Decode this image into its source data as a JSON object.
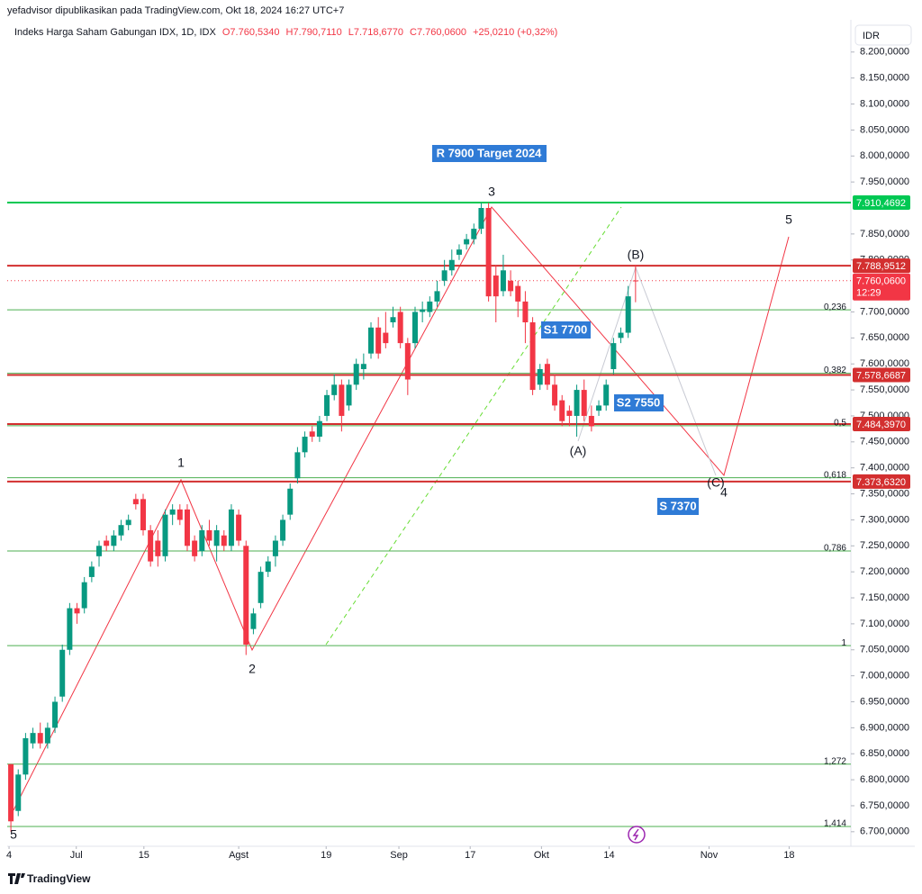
{
  "chart_data": {
    "type": "candlestick",
    "publisher": "yefadvisor dipublikasikan pada TradingView.com, Okt 18, 2024 16:27 UTC+7",
    "title": "Indeks Harga Saham Gabungan IDX, 1D, IDX",
    "ohlc_labels": [
      "O7.760,5340",
      "H7.790,7110",
      "L7.718,6770",
      "C7.760,0600",
      "+25,0210 (+0,32%)"
    ],
    "currency": "IDR",
    "brand": "TradingView",
    "up_color": "#089981",
    "down_color": "#f23645",
    "series": [
      {
        "name": "Indeks Harga Saham Gabungan IDX",
        "open": [
          6830,
          6740,
          6810,
          6870,
          6890,
          6870,
          6900,
          6960,
          7050,
          7130,
          7130,
          7190,
          7230,
          7260,
          7250,
          7270,
          7290,
          7340,
          7340,
          7280,
          7260,
          7230,
          7310,
          7320,
          7320,
          7260,
          7240,
          7280,
          7250,
          7270,
          7250,
          7310,
          7250,
          7090,
          7140,
          7200,
          7230,
          7260,
          7310,
          7380,
          7430,
          7470,
          7460,
          7500,
          7540,
          7560,
          7520,
          7560,
          7590,
          7620,
          7670,
          7660,
          7680,
          7700,
          7640,
          7640,
          7700,
          7700,
          7720,
          7760,
          7780,
          7810,
          7830,
          7840,
          7860,
          7900,
          7770,
          7740,
          7760,
          7750,
          7720,
          7680,
          7560,
          7600,
          7560,
          7530,
          7510,
          7500,
          7550,
          7500,
          7510,
          7520,
          7590,
          7650,
          7660,
          7760.534
        ],
        "high": [
          6830,
          6820,
          6890,
          6900,
          6910,
          6910,
          6960,
          7060,
          7140,
          7140,
          7190,
          7220,
          7260,
          7270,
          7280,
          7300,
          7310,
          7350,
          7350,
          7290,
          7280,
          7320,
          7330,
          7330,
          7330,
          7270,
          7290,
          7300,
          7290,
          7280,
          7330,
          7320,
          7260,
          7130,
          7210,
          7230,
          7270,
          7310,
          7370,
          7440,
          7470,
          7480,
          7500,
          7550,
          7580,
          7570,
          7570,
          7610,
          7620,
          7680,
          7690,
          7700,
          7710,
          7710,
          7650,
          7710,
          7720,
          7730,
          7760,
          7800,
          7820,
          7830,
          7850,
          7870,
          7910,
          7910,
          7790,
          7810,
          7780,
          7760,
          7740,
          7690,
          7600,
          7610,
          7580,
          7540,
          7520,
          7560,
          7570,
          7520,
          7530,
          7570,
          7650,
          7670,
          7750,
          7790.711
        ],
        "low": [
          6700,
          6730,
          6800,
          6860,
          6860,
          6860,
          6890,
          6950,
          7040,
          7100,
          7120,
          7180,
          7210,
          7240,
          7240,
          7260,
          7280,
          7320,
          7270,
          7210,
          7210,
          7220,
          7290,
          7290,
          7240,
          7220,
          7230,
          7250,
          7220,
          7240,
          7240,
          7250,
          7040,
          7080,
          7130,
          7190,
          7210,
          7250,
          7300,
          7370,
          7420,
          7450,
          7450,
          7490,
          7530,
          7470,
          7510,
          7550,
          7570,
          7610,
          7610,
          7630,
          7670,
          7630,
          7540,
          7630,
          7680,
          7690,
          7710,
          7750,
          7770,
          7800,
          7820,
          7830,
          7850,
          7720,
          7680,
          7730,
          7730,
          7690,
          7640,
          7540,
          7550,
          7550,
          7510,
          7480,
          7480,
          7460,
          7490,
          7470,
          7500,
          7510,
          7580,
          7640,
          7650,
          7718.677
        ],
        "close": [
          6720,
          6810,
          6880,
          6890,
          6870,
          6900,
          6950,
          7050,
          7130,
          7120,
          7180,
          7210,
          7250,
          7250,
          7270,
          7290,
          7300,
          7330,
          7280,
          7220,
          7230,
          7310,
          7320,
          7300,
          7250,
          7230,
          7280,
          7260,
          7280,
          7250,
          7320,
          7260,
          7060,
          7120,
          7200,
          7220,
          7260,
          7300,
          7360,
          7430,
          7460,
          7460,
          7490,
          7540,
          7560,
          7500,
          7560,
          7600,
          7600,
          7670,
          7620,
          7640,
          7690,
          7640,
          7570,
          7700,
          7705,
          7720,
          7740,
          7780,
          7800,
          7820,
          7840,
          7860,
          7900,
          7730,
          7730,
          7780,
          7740,
          7720,
          7680,
          7550,
          7590,
          7560,
          7520,
          7490,
          7500,
          7550,
          7500,
          7480,
          7520,
          7560,
          7640,
          7660,
          7730,
          7760.06
        ]
      }
    ],
    "xlim": [
      -0.5,
      114.3
    ],
    "xticks": [
      {
        "value": -0.25,
        "label": "4"
      },
      {
        "value": 8.9,
        "label": "Jul"
      },
      {
        "value": 18.1,
        "label": "15"
      },
      {
        "value": 31,
        "label": "Agst"
      },
      {
        "value": 42.9,
        "label": "19"
      },
      {
        "value": 52.8,
        "label": "Sep"
      },
      {
        "value": 62.5,
        "label": "17"
      },
      {
        "value": 72.2,
        "label": "Okt"
      },
      {
        "value": 81.4,
        "label": "14"
      },
      {
        "value": 95,
        "label": "Nov"
      },
      {
        "value": 105.9,
        "label": "18"
      }
    ],
    "ylim": [
      6672,
      8262
    ],
    "yticks": [
      {
        "value": 8200,
        "label": "8.200,0000"
      },
      {
        "value": 8150,
        "label": "8.150,0000"
      },
      {
        "value": 8100,
        "label": "8.100,0000"
      },
      {
        "value": 8050,
        "label": "8.050,0000"
      },
      {
        "value": 8000,
        "label": "8.000,0000"
      },
      {
        "value": 7950,
        "label": "7.950,0000"
      },
      {
        "value": 7850,
        "label": "7.850,0000"
      },
      {
        "value": 7800,
        "label": "7.800,0000"
      },
      {
        "value": 7700,
        "label": "7.700,0000"
      },
      {
        "value": 7650,
        "label": "7.650,0000"
      },
      {
        "value": 7600,
        "label": "7.600,0000"
      },
      {
        "value": 7550,
        "label": "7.550,0000"
      },
      {
        "value": 7500,
        "label": "7.500,0000"
      },
      {
        "value": 7450,
        "label": "7.450,0000"
      },
      {
        "value": 7400,
        "label": "7.400,0000"
      },
      {
        "value": 7350,
        "label": "7.350,0000"
      },
      {
        "value": 7300,
        "label": "7.300,0000"
      },
      {
        "value": 7250,
        "label": "7.250,0000"
      },
      {
        "value": 7200,
        "label": "7.200,0000"
      },
      {
        "value": 7150,
        "label": "7.150,0000"
      },
      {
        "value": 7100,
        "label": "7.100,0000"
      },
      {
        "value": 7050,
        "label": "7.050,0000"
      },
      {
        "value": 7000,
        "label": "7.000,0000"
      },
      {
        "value": 6950,
        "label": "6.950,0000"
      },
      {
        "value": 6900,
        "label": "6.900,0000"
      },
      {
        "value": 6850,
        "label": "6.850,0000"
      },
      {
        "value": 6800,
        "label": "6.800,0000"
      },
      {
        "value": 6750,
        "label": "6.750,0000"
      },
      {
        "value": 6700,
        "label": "6.700,0000"
      }
    ],
    "fib_color": "#4caf50",
    "fib_levels": [
      {
        "value": 7704,
        "label": "0,236"
      },
      {
        "value": 7582,
        "label": "0,382"
      },
      {
        "value": 7481,
        "label": "0,5"
      },
      {
        "value": 7381,
        "label": "0,618"
      },
      {
        "value": 7240,
        "label": "0,786"
      },
      {
        "value": 7058,
        "label": "1"
      },
      {
        "value": 6830,
        "label": "1,272"
      },
      {
        "value": 6710,
        "label": "1,414"
      }
    ],
    "levels": [
      {
        "value": 7910.4692,
        "label": "7.910,4692",
        "color": "#00c853"
      },
      {
        "value": 7788.9512,
        "label": "7.788,9512",
        "color": "#d32f2f"
      },
      {
        "value": 7578.6687,
        "label": "7.578,6687",
        "color": "#d32f2f"
      },
      {
        "value": 7484.397,
        "label": "7.484,3970",
        "color": "#d32f2f"
      },
      {
        "value": 7373.632,
        "label": "7.373,6320",
        "color": "#d32f2f"
      }
    ],
    "price_line": {
      "value": 7760.06,
      "label": "7.760,0600",
      "countdown": "12:29",
      "color": "#f23645"
    },
    "waves": [
      "1",
      "2",
      "3",
      "4",
      "5",
      "5",
      "(A)",
      "(B)",
      "(C)"
    ],
    "notes": [
      "R 7900 Target 2024",
      "S1 7700",
      "S2 7550",
      "S 7370"
    ]
  }
}
